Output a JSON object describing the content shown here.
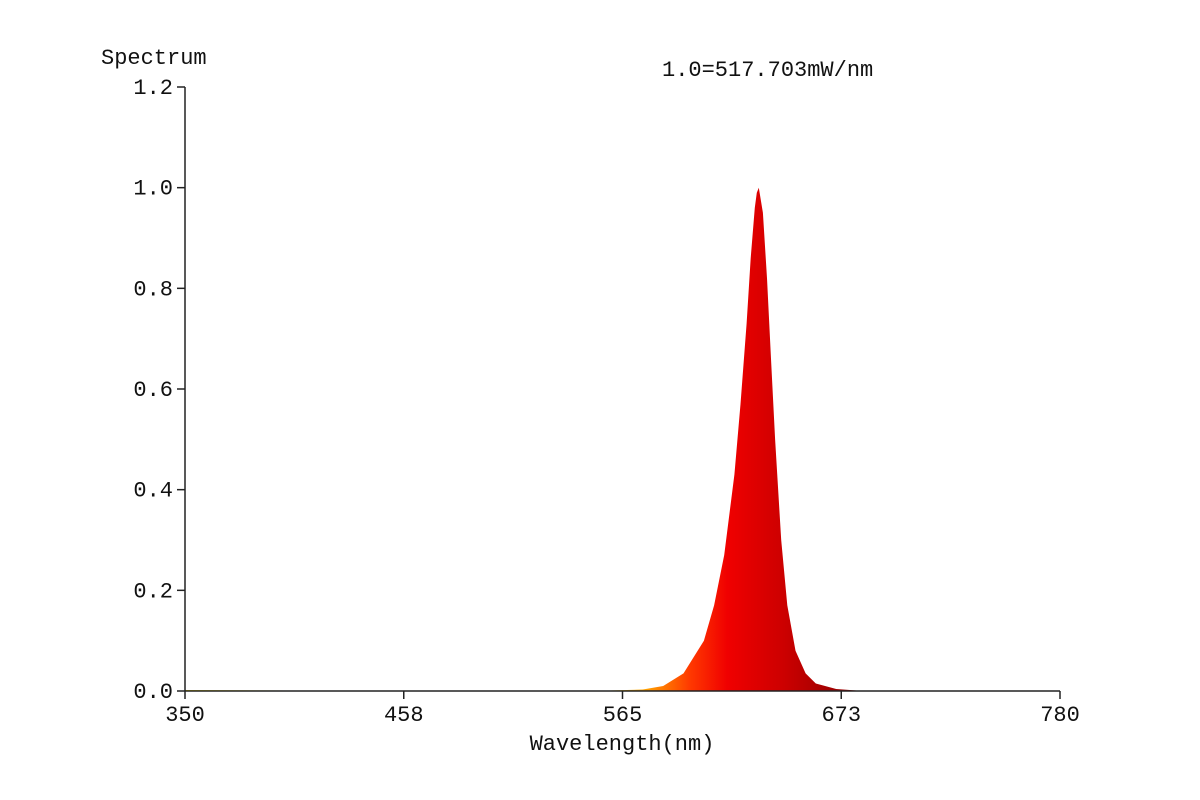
{
  "chart_data": {
    "type": "area",
    "title": "Spectrum",
    "annotation": "1.0=517.703mW/nm",
    "xlabel": "Wavelength(nm)",
    "ylabel": "",
    "xlim": [
      350,
      780
    ],
    "ylim": [
      0,
      1.2
    ],
    "xticks": [
      "350",
      "458",
      "565",
      "673",
      "780"
    ],
    "yticks": [
      "0.0",
      "0.2",
      "0.4",
      "0.6",
      "0.8",
      "1.0",
      "1.2"
    ],
    "grid": false,
    "fill": "spectral-color-gradient",
    "series": [
      {
        "x": [
          350,
          400,
          450,
          500,
          550,
          575,
          585,
          595,
          605,
          610,
          615,
          620,
          623,
          626,
          628,
          630,
          631,
          632,
          634,
          636,
          638,
          640,
          643,
          646,
          650,
          655,
          660,
          670,
          680,
          700,
          780
        ],
        "values": [
          0.002,
          0.001,
          0.0,
          0.0,
          0.0,
          0.003,
          0.01,
          0.035,
          0.1,
          0.17,
          0.27,
          0.43,
          0.57,
          0.73,
          0.86,
          0.96,
          0.99,
          1.0,
          0.95,
          0.82,
          0.66,
          0.5,
          0.3,
          0.17,
          0.08,
          0.035,
          0.015,
          0.004,
          0.001,
          0.0,
          0.0
        ]
      }
    ]
  }
}
